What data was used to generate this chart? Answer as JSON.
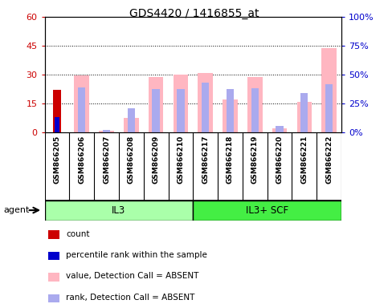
{
  "title": "GDS4420 / 1416855_at",
  "samples": [
    "GSM866205",
    "GSM866206",
    "GSM866207",
    "GSM866208",
    "GSM866209",
    "GSM866210",
    "GSM866217",
    "GSM866218",
    "GSM866219",
    "GSM866220",
    "GSM866221",
    "GSM866222"
  ],
  "count_values": [
    22,
    0,
    0,
    0,
    0,
    0,
    0,
    0,
    0,
    0,
    0,
    0
  ],
  "percentile_rank_values": [
    8,
    0,
    0,
    0,
    0,
    0,
    0,
    0,
    0,
    0,
    0,
    0
  ],
  "value_absent": [
    0,
    29.5,
    1.0,
    7.5,
    29.0,
    30.0,
    31.0,
    17.0,
    29.0,
    2.0,
    16.0,
    44.0
  ],
  "rank_absent": [
    0,
    23.5,
    1.5,
    12.5,
    22.5,
    22.5,
    26.0,
    22.5,
    23.0,
    3.5,
    20.5,
    25.0
  ],
  "il3_color": "#AAFFAA",
  "il3scf_color": "#44EE44",
  "bg_color": "#D8D8D8",
  "count_color": "#CC0000",
  "percentile_color": "#0000CC",
  "value_absent_color": "#FFB6C1",
  "rank_absent_color": "#AAAAEE",
  "legend_items": [
    {
      "color": "#CC0000",
      "label": "count"
    },
    {
      "color": "#0000CC",
      "label": "percentile rank within the sample"
    },
    {
      "color": "#FFB6C1",
      "label": "value, Detection Call = ABSENT"
    },
    {
      "color": "#AAAAEE",
      "label": "rank, Detection Call = ABSENT"
    }
  ]
}
